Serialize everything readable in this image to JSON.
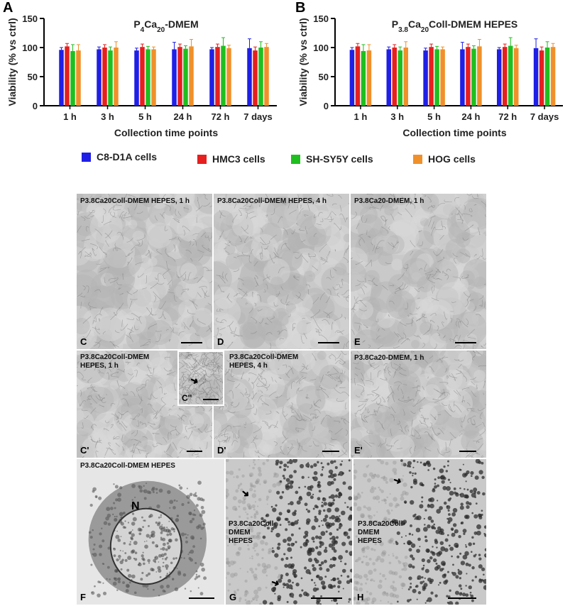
{
  "figure": {
    "panel_a_letter": "A",
    "panel_b_letter": "B"
  },
  "legend": [
    {
      "label": "C8-D1A cells",
      "color": "#1f1fe6"
    },
    {
      "label": "HMC3 cells",
      "color": "#e61f1f"
    },
    {
      "label": "SH-SY5Y cells",
      "color": "#1fbf1f"
    },
    {
      "label": "HOG cells",
      "color": "#f0902a"
    }
  ],
  "chart_data": [
    {
      "type": "bar",
      "title_main": "P",
      "title_sub1": "4",
      "title_mid": "Ca",
      "title_sub2": "20",
      "title_tail": "-DMEM",
      "categories": [
        "1 h",
        "3 h",
        "5 h",
        "24 h",
        "72 h",
        "7 days"
      ],
      "xlabel": "Collection time points",
      "ylabel": "Viability (% vs ctrl)",
      "ylim": [
        0,
        150
      ],
      "yticks": [
        "0",
        "50",
        "100",
        "150"
      ],
      "series": [
        {
          "name": "C8-D1A cells",
          "color": "#1f1fe6",
          "values": [
            96,
            97,
            95,
            97,
            97,
            99
          ],
          "errors": [
            4,
            4,
            4,
            12,
            3,
            16
          ]
        },
        {
          "name": "HMC3 cells",
          "color": "#e61f1f",
          "values": [
            102,
            100,
            101,
            101,
            101,
            95
          ],
          "errors": [
            5,
            5,
            5,
            5,
            5,
            6
          ]
        },
        {
          "name": "SH-SY5Y cells",
          "color": "#1fbf1f",
          "values": [
            94,
            95,
            97,
            98,
            103,
            100
          ],
          "errors": [
            11,
            6,
            5,
            5,
            14,
            10
          ]
        },
        {
          "name": "HOG cells",
          "color": "#f0902a",
          "values": [
            95,
            100,
            97,
            102,
            99,
            101
          ],
          "errors": [
            10,
            10,
            4,
            12,
            5,
            6
          ]
        }
      ]
    },
    {
      "type": "bar",
      "title_main": "P",
      "title_sub1": "3.8",
      "title_mid": "Ca",
      "title_sub2": "20",
      "title_tail": "Coll-DMEM HEPES",
      "categories": [
        "1 h",
        "3 h",
        "5 h",
        "24 h",
        "72 h",
        "7 days"
      ],
      "xlabel": "Collection time points",
      "ylabel": "Viability (% vs ctrl)",
      "ylim": [
        0,
        150
      ],
      "yticks": [
        "0",
        "50",
        "100",
        "150"
      ],
      "series": [
        {
          "name": "C8-D1A cells",
          "color": "#1f1fe6",
          "values": [
            96,
            97,
            95,
            97,
            97,
            99
          ],
          "errors": [
            4,
            4,
            4,
            12,
            3,
            16
          ]
        },
        {
          "name": "HMC3 cells",
          "color": "#e61f1f",
          "values": [
            102,
            100,
            101,
            101,
            101,
            95
          ],
          "errors": [
            5,
            5,
            5,
            5,
            5,
            6
          ]
        },
        {
          "name": "SH-SY5Y cells",
          "color": "#1fbf1f",
          "values": [
            94,
            95,
            97,
            98,
            103,
            100
          ],
          "errors": [
            11,
            6,
            5,
            5,
            14,
            10
          ]
        },
        {
          "name": "HOG cells",
          "color": "#f0902a",
          "values": [
            95,
            100,
            97,
            102,
            99,
            101
          ],
          "errors": [
            10,
            10,
            4,
            12,
            5,
            6
          ]
        }
      ]
    }
  ],
  "micrographs": {
    "C": {
      "letter": "C",
      "label": [
        "P3.8Ca20Coll-DMEM HEPES, 1 h"
      ]
    },
    "D": {
      "letter": "D",
      "label": [
        "P3.8Ca20Coll-DMEM HEPES, 4 h"
      ]
    },
    "E": {
      "letter": "E",
      "label": [
        "P3.8Ca20-DMEM, 1 h"
      ]
    },
    "C1": {
      "letter": "C'",
      "label": [
        "P3.8Ca20Coll-DMEM",
        "HEPES, 1 h"
      ]
    },
    "C2": {
      "letter": "C''"
    },
    "D1": {
      "letter": "D'",
      "label": [
        "P3.8Ca20Coll-DMEM",
        "HEPES, 4 h"
      ]
    },
    "E1": {
      "letter": "E'",
      "label": [
        "P3.8Ca20-DMEM, 1 h"
      ]
    },
    "F": {
      "letter": "F",
      "label": [
        "P3.8Ca20Coll-DMEM HEPES"
      ],
      "nucleus": "N"
    },
    "G": {
      "letter": "G",
      "label": [
        "P3.8Ca20Coll-",
        "DMEM",
        "HEPES"
      ]
    },
    "H": {
      "letter": "H",
      "label": [
        "P3.8Ca20Coll-",
        "DMEM",
        "HEPES"
      ]
    }
  }
}
